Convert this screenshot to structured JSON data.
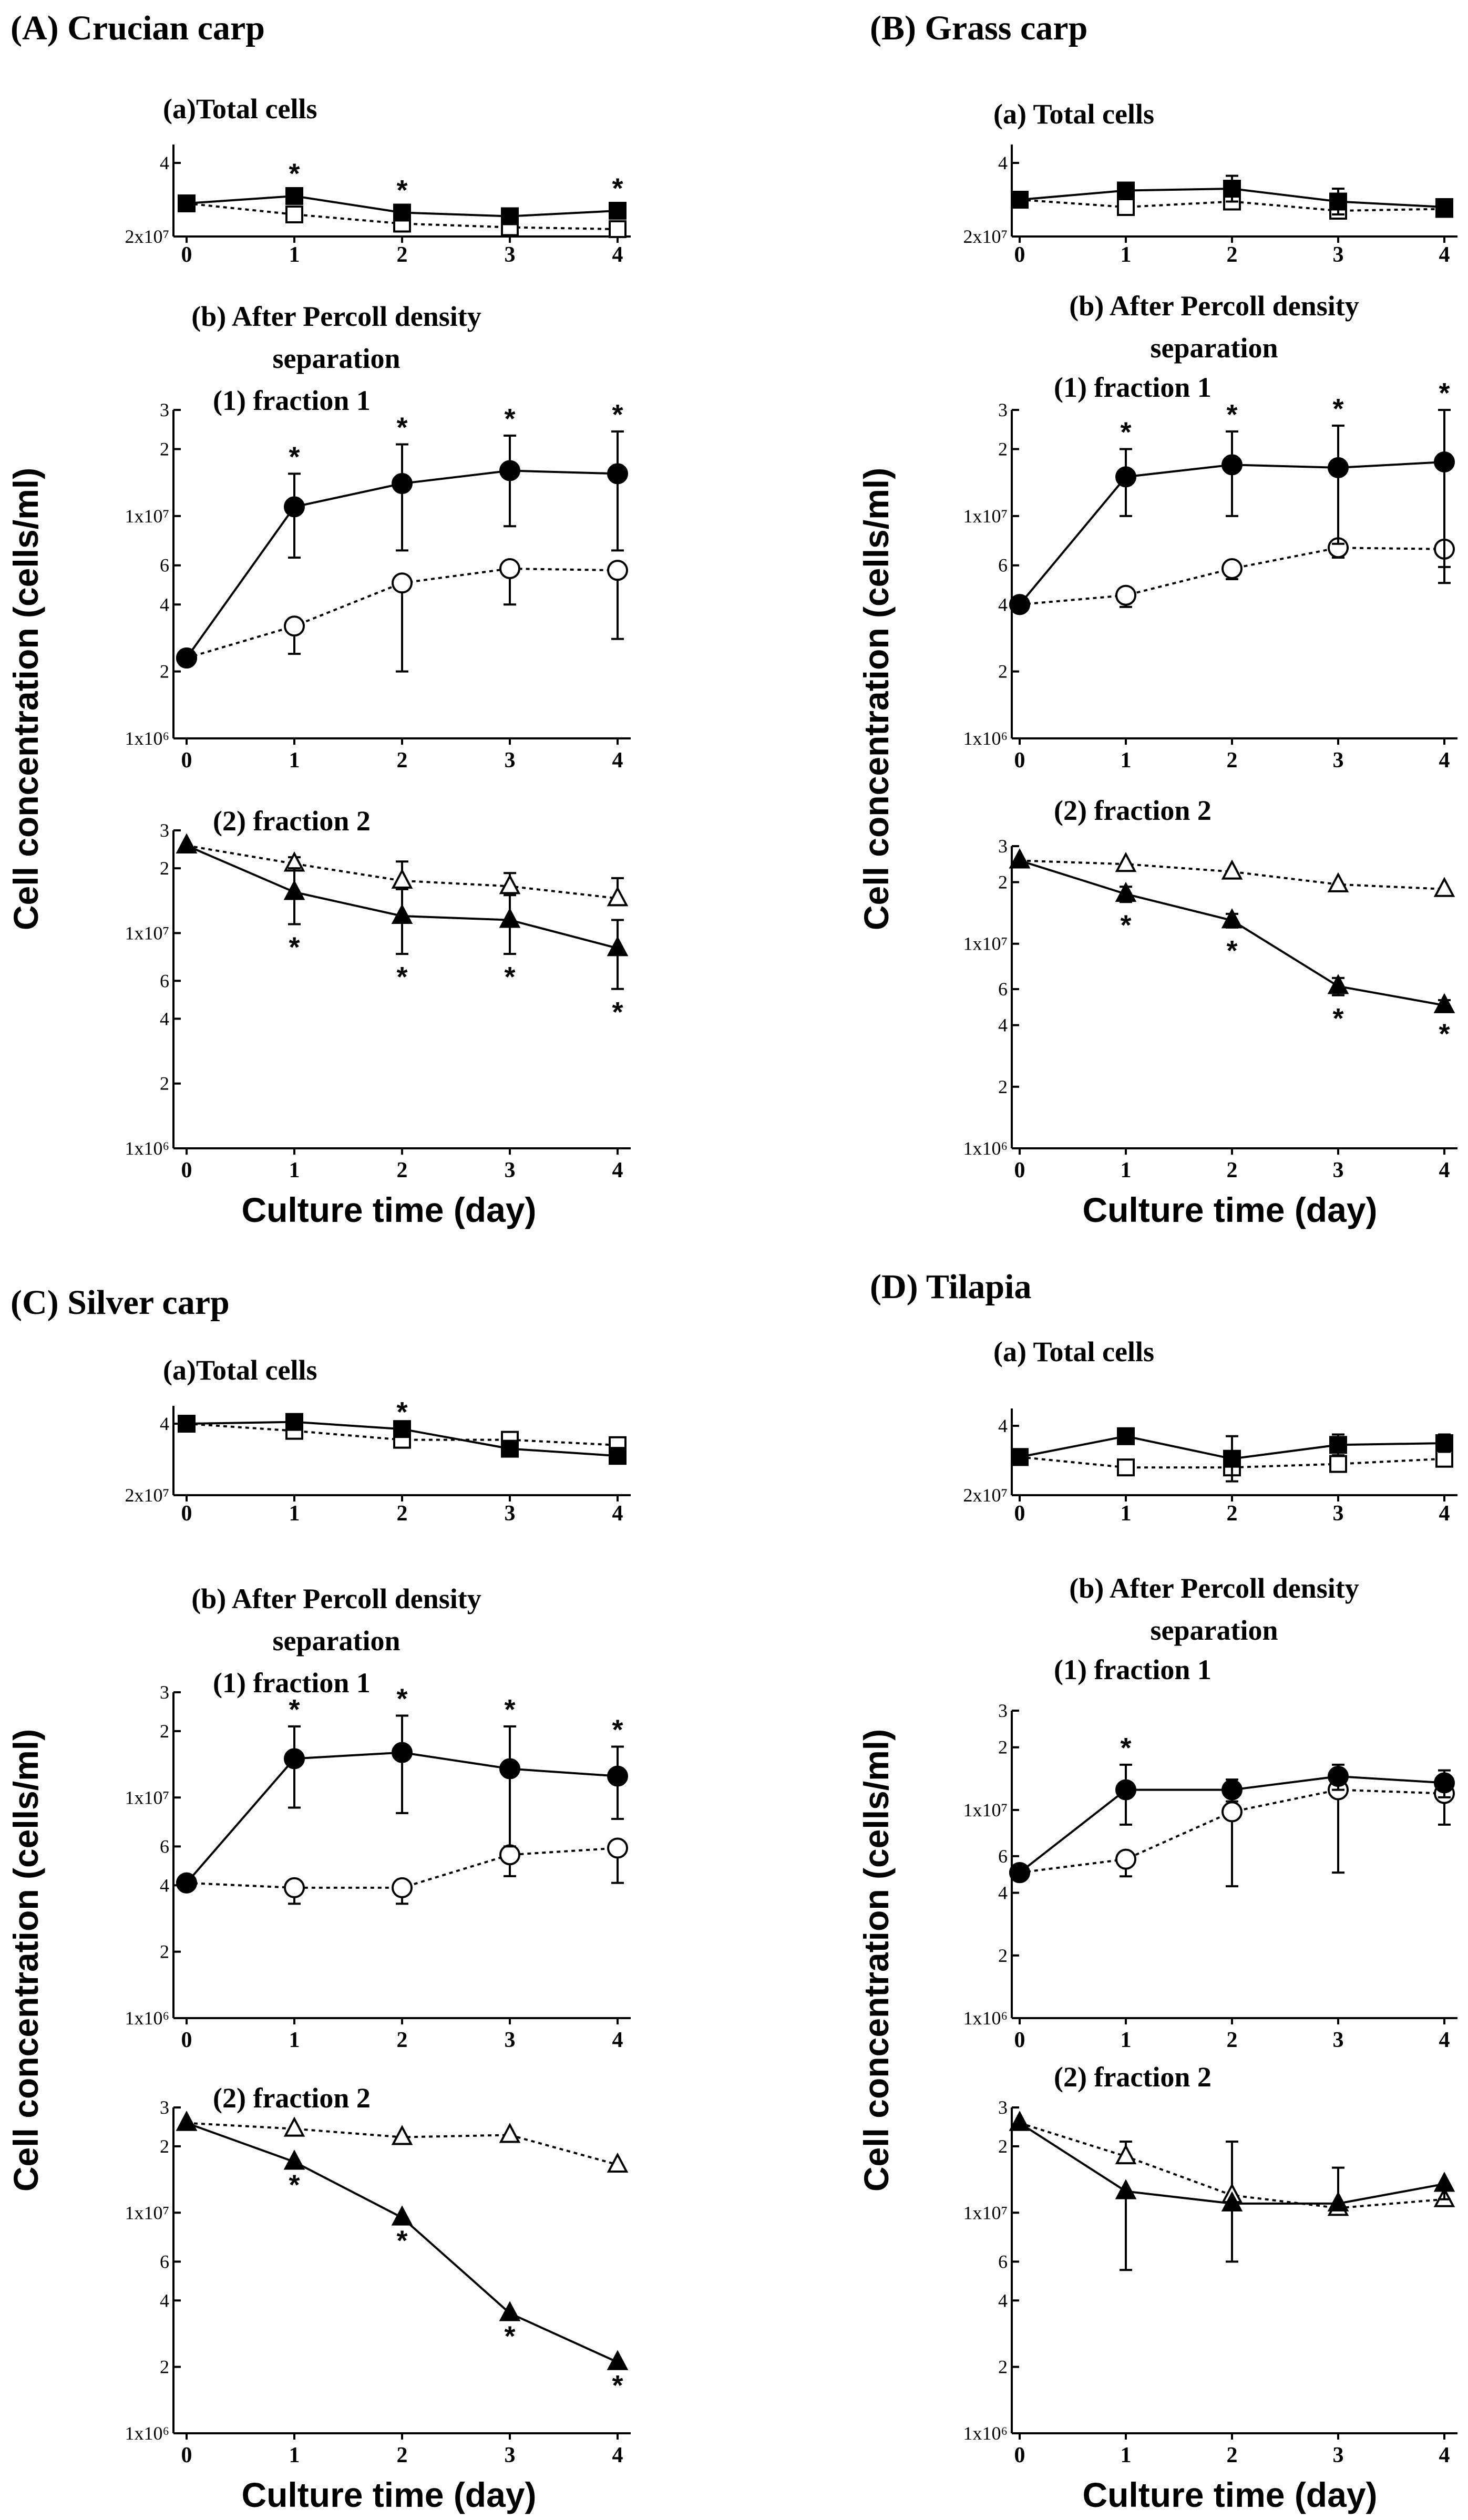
{
  "figure": {
    "ylabel": "Cell concentration (cells/ml)",
    "xlabel": "Culture time (day)",
    "subtitle_b_line1": "(b) After Percoll density",
    "subtitle_b_line2": "separation",
    "fraction1": "(1) fraction 1",
    "fraction2": "(2) fraction 2",
    "x_ticks": [
      "0",
      "1",
      "2",
      "3",
      "4"
    ],
    "total_yticks": {
      "v2": "2x10⁷",
      "v4": "4"
    },
    "frac_yticks": {
      "v1e6": "1x10⁶",
      "v2e6": "2",
      "v4e6": "4",
      "v6e6": "6",
      "v1e7": "1x10⁷",
      "v2e7": "2",
      "v3e7": "3"
    }
  },
  "chart_data": [
    {
      "type": "line",
      "panel": "A",
      "title": "(A) Crucian carp",
      "total_title": "(a)Total cells",
      "x": [
        0,
        1,
        2,
        3,
        4
      ],
      "total": {
        "ylim": [
          20000000,
          45000000
        ],
        "series": [
          {
            "name": "filled square",
            "values": [
              29000000,
              31000000,
              26500000,
              25500000,
              27000000
            ],
            "errors": [
              0,
              1500000,
              1500000,
              1500000,
              1500000
            ],
            "stars": [
              false,
              true,
              true,
              false,
              true
            ]
          },
          {
            "name": "open square",
            "values": [
              29000000,
              26000000,
              23500000,
              22500000,
              22000000
            ],
            "errors": [
              0,
              0,
              0,
              0,
              0
            ]
          }
        ]
      },
      "fraction1": {
        "ylim": [
          1000000,
          30000000
        ],
        "series": [
          {
            "name": "filled circle",
            "values": [
              2300000,
              11000000,
              14000000,
              16000000,
              15500000
            ],
            "errors": [
              0,
              4500000,
              7000000,
              7000000,
              8500000
            ],
            "stars": [
              false,
              true,
              true,
              true,
              true
            ]
          },
          {
            "name": "open circle",
            "values": [
              2300000,
              3200000,
              5000000,
              5800000,
              5700000
            ],
            "errors": [
              0,
              800000,
              3000000,
              1800000,
              2900000
            ],
            "err_dir": "down"
          }
        ]
      },
      "fraction2": {
        "ylim": [
          1000000,
          30000000
        ],
        "series": [
          {
            "name": "filled triangle",
            "values": [
              25500000,
              15500000,
              12000000,
              11500000,
              8500000
            ],
            "errors": [
              0,
              4500000,
              4000000,
              3500000,
              3000000
            ],
            "stars": [
              false,
              true,
              true,
              true,
              true
            ]
          },
          {
            "name": "open triangle",
            "values": [
              25500000,
              21000000,
              17500000,
              16500000,
              14500000
            ],
            "errors": [
              0,
              1500000,
              4000000,
              2500000,
              3500000
            ],
            "err_dir": "up"
          }
        ]
      }
    },
    {
      "type": "line",
      "panel": "B",
      "title": "(B) Grass carp",
      "total_title": "(a) Total cells",
      "x": [
        0,
        1,
        2,
        3,
        4
      ],
      "total": {
        "ylim": [
          20000000,
          45000000
        ],
        "series": [
          {
            "name": "filled square",
            "values": [
              30000000,
              32500000,
              33000000,
              29500000,
              28000000
            ],
            "errors": [
              0,
              1500000,
              3500000,
              3500000,
              0
            ]
          },
          {
            "name": "open square",
            "values": [
              30000000,
              28000000,
              29500000,
              27000000,
              27500000
            ],
            "errors": [
              0,
              0,
              0,
              0,
              0
            ]
          }
        ]
      },
      "fraction1": {
        "ylim": [
          1000000,
          30000000
        ],
        "series": [
          {
            "name": "filled circle",
            "values": [
              4000000,
              15000000,
              17000000,
              16500000,
              17500000
            ],
            "errors": [
              0,
              5000000,
              7000000,
              9000000,
              12500000
            ],
            "stars": [
              false,
              true,
              true,
              true,
              true
            ]
          },
          {
            "name": "open circle",
            "values": [
              4000000,
              4400000,
              5800000,
              7200000,
              7100000
            ],
            "errors": [
              0,
              500000,
              600000,
              700000,
              1200000
            ],
            "err_dir": "down"
          }
        ]
      },
      "fraction2": {
        "ylim": [
          1000000,
          30000000
        ],
        "series": [
          {
            "name": "filled triangle",
            "values": [
              25500000,
              17500000,
              13000000,
              6200000,
              5000000
            ],
            "errors": [
              0,
              1500000,
              1000000,
              600000,
              300000
            ],
            "stars": [
              false,
              true,
              true,
              true,
              true
            ]
          },
          {
            "name": "open triangle",
            "values": [
              25500000,
              24500000,
              22500000,
              19500000,
              18500000
            ],
            "errors": [
              0,
              0,
              0,
              0,
              0
            ]
          }
        ]
      }
    },
    {
      "type": "line",
      "panel": "C",
      "title": "(C) Silver carp",
      "total_title": "(a)Total cells",
      "x": [
        0,
        1,
        2,
        3,
        4
      ],
      "total": {
        "ylim": [
          20000000,
          45000000
        ],
        "series": [
          {
            "name": "filled square",
            "values": [
              40000000,
              40500000,
              38500000,
              33000000,
              31000000
            ],
            "errors": [
              0,
              0,
              0,
              0,
              0
            ],
            "stars": [
              false,
              false,
              true,
              false,
              false
            ]
          },
          {
            "name": "open square",
            "values": [
              40000000,
              38000000,
              35500000,
              35500000,
              34000000
            ],
            "errors": [
              0,
              0,
              0,
              0,
              0
            ]
          }
        ]
      },
      "fraction1": {
        "ylim": [
          1000000,
          30000000
        ],
        "series": [
          {
            "name": "filled circle",
            "values": [
              4100000,
              15000000,
              16000000,
              13500000,
              12500000
            ],
            "errors": [
              0,
              6000000,
              7500000,
              7500000,
              4500000
            ],
            "stars": [
              false,
              true,
              true,
              true,
              true
            ]
          },
          {
            "name": "open circle",
            "values": [
              4100000,
              3900000,
              3900000,
              5500000,
              5900000
            ],
            "errors": [
              0,
              600000,
              600000,
              1100000,
              1800000
            ],
            "err_dir": "down"
          }
        ]
      },
      "fraction2": {
        "ylim": [
          1000000,
          30000000
        ],
        "series": [
          {
            "name": "filled triangle",
            "values": [
              25500000,
              17000000,
              9500000,
              3500000,
              2100000
            ],
            "errors": [
              0,
              0,
              0,
              0,
              0
            ],
            "stars": [
              false,
              true,
              true,
              true,
              true
            ]
          },
          {
            "name": "open triangle",
            "values": [
              25500000,
              24000000,
              22000000,
              22500000,
              16500000
            ],
            "errors": [
              0,
              0,
              0,
              0,
              0
            ]
          }
        ]
      }
    },
    {
      "type": "line",
      "panel": "D",
      "title": "(D) Tilapia",
      "total_title": "(a) Total cells",
      "x": [
        0,
        1,
        2,
        3,
        4
      ],
      "total": {
        "ylim": [
          20000000,
          45000000
        ],
        "series": [
          {
            "name": "filled square",
            "values": [
              31000000,
              37000000,
              30500000,
              34500000,
              35000000
            ],
            "errors": [
              0,
              2000000,
              6500000,
              3000000,
              2500000
            ]
          },
          {
            "name": "open square",
            "values": [
              31000000,
              28000000,
              28000000,
              29000000,
              30500000
            ],
            "errors": [
              0,
              0,
              0,
              0,
              0
            ]
          }
        ]
      },
      "fraction1": {
        "ylim": [
          1000000,
          30000000
        ],
        "series": [
          {
            "name": "filled circle",
            "values": [
              5000000,
              12500000,
              12500000,
              14500000,
              13500000
            ],
            "errors": [
              0,
              4000000,
              1500000,
              2000000,
              2000000
            ],
            "stars": [
              false,
              true,
              false,
              false,
              false
            ]
          },
          {
            "name": "open circle",
            "values": [
              5000000,
              5800000,
              9800000,
              12500000,
              12000000
            ],
            "errors": [
              0,
              1000000,
              5500000,
              7500000,
              3500000
            ],
            "err_dir": "down"
          }
        ]
      },
      "fraction2": {
        "ylim": [
          1000000,
          30000000
        ],
        "series": [
          {
            "name": "filled triangle",
            "values": [
              25500000,
              12500000,
              11000000,
              11000000,
              13500000
            ],
            "errors": [
              0,
              7000000,
              5000000,
              0,
              2000000
            ],
            "err_dir": "down"
          },
          {
            "name": "open triangle",
            "values": [
              25500000,
              18000000,
              12000000,
              10500000,
              11500000
            ],
            "errors": [
              0,
              3000000,
              9000000,
              5500000,
              0
            ],
            "err_dir": "up"
          }
        ]
      }
    }
  ]
}
